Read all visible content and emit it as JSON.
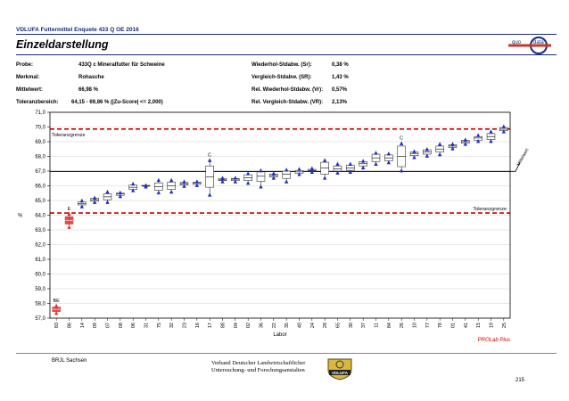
{
  "header": {
    "top_line": "VDLUFA Futtermittel Enquete 433 Q OE 2016",
    "title": "Einzeldarstellung",
    "logo_text_left": "quo",
    "logo_text_right": "data"
  },
  "info": {
    "probe_label": "Probe:",
    "probe_value": "433Q c Mineralfutter für Schweine",
    "merkmal_label": "Merkmal:",
    "merkmal_value": "Rohasche",
    "mittelwert_label": "Mittelwert:",
    "mittelwert_value": "66,98 %",
    "toleranz_label": "Toleranzbereich:",
    "toleranz_value": "64,15 - 69,86 % (|Zu-Score| <= 2,000)",
    "sr_label": "Wiederhol-Stdabw. (Sr):",
    "sr_value": "0,38 %",
    "sR_label": "Vergleich-Stdabw. (SR):",
    "sR_value": "1,43 %",
    "vr_label": "Rel. Wiederhol-Stdabw. (Vr):",
    "vr_value": "0,57%",
    "vR_label": "Rel. Vergleich-Stdabw. (VR):",
    "vR_value": "2,13%"
  },
  "chart_data": {
    "type": "box",
    "xlabel": "Labor",
    "ylabel": "%",
    "ylim": [
      57.0,
      71.0
    ],
    "yticks": [
      "57,0",
      "58,0",
      "59,0",
      "60,0",
      "61,0",
      "62,0",
      "63,0",
      "64,0",
      "65,0",
      "66,0",
      "67,0",
      "68,0",
      "69,0",
      "70,0",
      "71,0"
    ],
    "mean": 66.98,
    "tolerance_lower": 64.15,
    "tolerance_upper": 69.86,
    "tolerance_label_upper": "Toleranzgrenze",
    "tolerance_label_lower": "Toleranzgrenze",
    "mean_label": "Mittelwert",
    "watermark": "PROLab Plus",
    "labs": [
      {
        "lab": "83",
        "min": 57.35,
        "q1": 57.45,
        "med": 57.6,
        "q3": 57.75,
        "max": 57.85,
        "flag": "BE",
        "outlier": true
      },
      {
        "lab": "86",
        "min": 63.2,
        "q1": 63.4,
        "med": 63.65,
        "q3": 63.9,
        "max": 64.1,
        "flag": "E",
        "outlier": true
      },
      {
        "lab": "14",
        "min": 64.6,
        "q1": 64.7,
        "med": 64.8,
        "q3": 64.9,
        "max": 65.0,
        "flag": "",
        "outlier": false
      },
      {
        "lab": "09",
        "min": 64.9,
        "q1": 64.95,
        "med": 65.05,
        "q3": 65.15,
        "max": 65.2,
        "flag": "",
        "outlier": false
      },
      {
        "lab": "07",
        "min": 64.9,
        "q1": 65.05,
        "med": 65.25,
        "q3": 65.45,
        "max": 65.6,
        "flag": "",
        "outlier": false
      },
      {
        "lab": "08",
        "min": 65.3,
        "q1": 65.35,
        "med": 65.45,
        "q3": 65.5,
        "max": 65.55,
        "flag": "",
        "outlier": false
      },
      {
        "lab": "06",
        "min": 65.7,
        "q1": 65.75,
        "med": 65.9,
        "q3": 66.05,
        "max": 66.15,
        "flag": "",
        "outlier": false
      },
      {
        "lab": "31",
        "min": 65.95,
        "q1": 65.97,
        "med": 66.0,
        "q3": 66.03,
        "max": 66.05,
        "flag": "",
        "outlier": false
      },
      {
        "lab": "75",
        "min": 65.55,
        "q1": 65.7,
        "med": 65.95,
        "q3": 66.2,
        "max": 66.4,
        "flag": "",
        "outlier": false
      },
      {
        "lab": "32",
        "min": 65.6,
        "q1": 65.75,
        "med": 66.0,
        "q3": 66.25,
        "max": 66.4,
        "flag": "",
        "outlier": false
      },
      {
        "lab": "23",
        "min": 66.0,
        "q1": 66.05,
        "med": 66.15,
        "q3": 66.22,
        "max": 66.3,
        "flag": "",
        "outlier": false
      },
      {
        "lab": "16",
        "min": 66.05,
        "q1": 66.1,
        "med": 66.2,
        "q3": 66.25,
        "max": 66.3,
        "flag": "",
        "outlier": false
      },
      {
        "lab": "17",
        "min": 65.4,
        "q1": 65.9,
        "med": 66.6,
        "q3": 67.35,
        "max": 67.75,
        "flag": "C",
        "outlier": false
      },
      {
        "lab": "88",
        "min": 66.3,
        "q1": 66.35,
        "med": 66.4,
        "q3": 66.5,
        "max": 66.55,
        "flag": "",
        "outlier": false
      },
      {
        "lab": "04",
        "min": 66.3,
        "q1": 66.35,
        "med": 66.45,
        "q3": 66.5,
        "max": 66.55,
        "flag": "",
        "outlier": false
      },
      {
        "lab": "02",
        "min": 66.2,
        "q1": 66.35,
        "med": 66.55,
        "q3": 66.75,
        "max": 66.85,
        "flag": "",
        "outlier": false
      },
      {
        "lab": "36",
        "min": 65.95,
        "q1": 66.3,
        "med": 66.65,
        "q3": 66.95,
        "max": 67.05,
        "flag": "",
        "outlier": false
      },
      {
        "lab": "22",
        "min": 66.55,
        "q1": 66.6,
        "med": 66.7,
        "q3": 66.8,
        "max": 66.85,
        "flag": "",
        "outlier": false
      },
      {
        "lab": "35",
        "min": 66.3,
        "q1": 66.5,
        "med": 66.8,
        "q3": 67.0,
        "max": 67.1,
        "flag": "",
        "outlier": false
      },
      {
        "lab": "40",
        "min": 66.8,
        "q1": 66.85,
        "med": 66.95,
        "q3": 67.05,
        "max": 67.15,
        "flag": "",
        "outlier": false
      },
      {
        "lab": "24",
        "min": 66.95,
        "q1": 67.0,
        "med": 67.05,
        "q3": 67.12,
        "max": 67.2,
        "flag": "",
        "outlier": false
      },
      {
        "lab": "28",
        "min": 66.55,
        "q1": 66.8,
        "med": 67.2,
        "q3": 67.6,
        "max": 67.75,
        "flag": "",
        "outlier": false
      },
      {
        "lab": "65",
        "min": 66.9,
        "q1": 67.0,
        "med": 67.15,
        "q3": 67.35,
        "max": 67.5,
        "flag": "",
        "outlier": false
      },
      {
        "lab": "30",
        "min": 66.95,
        "q1": 67.05,
        "med": 67.2,
        "q3": 67.4,
        "max": 67.5,
        "flag": "",
        "outlier": false
      },
      {
        "lab": "37",
        "min": 67.25,
        "q1": 67.35,
        "med": 67.5,
        "q3": 67.65,
        "max": 67.7,
        "flag": "",
        "outlier": false
      },
      {
        "lab": "11",
        "min": 67.5,
        "q1": 67.65,
        "med": 67.9,
        "q3": 68.15,
        "max": 68.25,
        "flag": "",
        "outlier": false
      },
      {
        "lab": "84",
        "min": 67.6,
        "q1": 67.7,
        "med": 67.9,
        "q3": 68.1,
        "max": 68.2,
        "flag": "",
        "outlier": false
      },
      {
        "lab": "26",
        "min": 67.05,
        "q1": 67.3,
        "med": 68.0,
        "q3": 68.7,
        "max": 68.9,
        "flag": "C",
        "outlier": false
      },
      {
        "lab": "10",
        "min": 67.95,
        "q1": 68.05,
        "med": 68.2,
        "q3": 68.3,
        "max": 68.35,
        "flag": "",
        "outlier": false
      },
      {
        "lab": "77",
        "min": 68.05,
        "q1": 68.15,
        "med": 68.3,
        "q3": 68.45,
        "max": 68.5,
        "flag": "",
        "outlier": false
      },
      {
        "lab": "78",
        "min": 68.15,
        "q1": 68.3,
        "med": 68.5,
        "q3": 68.7,
        "max": 68.85,
        "flag": "",
        "outlier": false
      },
      {
        "lab": "01",
        "min": 68.55,
        "q1": 68.6,
        "med": 68.7,
        "q3": 68.8,
        "max": 68.85,
        "flag": "",
        "outlier": false
      },
      {
        "lab": "41",
        "min": 68.85,
        "q1": 68.9,
        "med": 69.0,
        "q3": 69.1,
        "max": 69.15,
        "flag": "",
        "outlier": false
      },
      {
        "lab": "15",
        "min": 69.05,
        "q1": 69.1,
        "med": 69.25,
        "q3": 69.35,
        "max": 69.45,
        "flag": "",
        "outlier": false
      },
      {
        "lab": "19",
        "min": 69.05,
        "q1": 69.15,
        "med": 69.35,
        "q3": 69.55,
        "max": 69.7,
        "flag": "",
        "outlier": false
      },
      {
        "lab": "25",
        "min": 69.7,
        "q1": 69.75,
        "med": 69.85,
        "q3": 69.95,
        "max": 70.05,
        "flag": "",
        "outlier": false
      }
    ]
  },
  "footer": {
    "left": "BRJL Sachsen",
    "center_line1": "Verband Deutscher Landwirtschaftlicher",
    "center_line2": "Untersuchung- und Forschungsanstalten",
    "vdlufa_logo_text": "VDLUFA",
    "page_number": "215"
  },
  "colors": {
    "navy": "#1a2a7a",
    "box_blue": "#1f2ec4",
    "outlier_red": "#e03030",
    "tolerance_red": "#cc0000"
  }
}
